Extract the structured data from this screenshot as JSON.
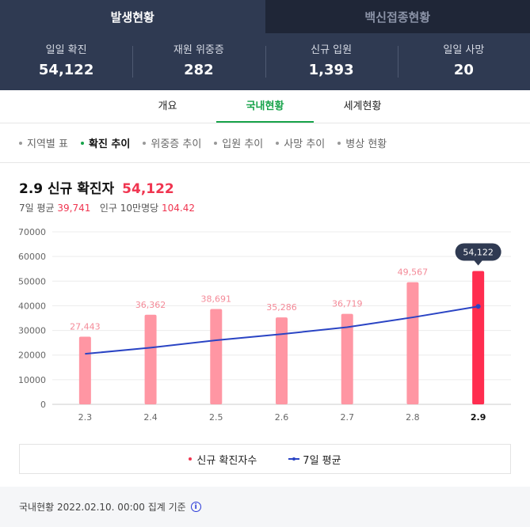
{
  "top_tabs": [
    {
      "label": "발생현황",
      "active": true
    },
    {
      "label": "백신접종현황",
      "active": false
    }
  ],
  "stats": [
    {
      "label": "일일 확진",
      "value": "54,122"
    },
    {
      "label": "재원 위중증",
      "value": "282"
    },
    {
      "label": "신규 입원",
      "value": "1,393"
    },
    {
      "label": "일일 사망",
      "value": "20"
    }
  ],
  "sub_tabs": [
    {
      "label": "개요",
      "active": false
    },
    {
      "label": "국내현황",
      "active": true
    },
    {
      "label": "세계현황",
      "active": false
    }
  ],
  "chips": [
    {
      "label": "지역별 표",
      "active": false
    },
    {
      "label": "확진 추이",
      "active": true
    },
    {
      "label": "위중증 추이",
      "active": false
    },
    {
      "label": "입원 추이",
      "active": false
    },
    {
      "label": "사망 추이",
      "active": false
    },
    {
      "label": "병상 현황",
      "active": false
    }
  ],
  "headline": {
    "title": "2.9 신규 확진자",
    "value": "54,122"
  },
  "subline": {
    "avg_label": "7일 평균",
    "avg_value": "39,741",
    "per_label": "인구 10만명당",
    "per_value": "104.42"
  },
  "chart_data": {
    "type": "bar",
    "categories": [
      "2.3",
      "2.4",
      "2.5",
      "2.6",
      "2.7",
      "2.8",
      "2.9"
    ],
    "series": [
      {
        "name": "신규 확진자수",
        "type": "bar",
        "values": [
          27443,
          36362,
          38691,
          35286,
          36719,
          49567,
          54122
        ]
      },
      {
        "name": "7일 평균",
        "type": "line",
        "values": [
          20500,
          23000,
          26000,
          28500,
          31300,
          35300,
          39741
        ]
      }
    ],
    "data_labels": [
      "27,443",
      "36,362",
      "38,691",
      "35,286",
      "36,719",
      "49,567",
      "54,122"
    ],
    "yticks": [
      0,
      10000,
      20000,
      30000,
      40000,
      50000,
      60000,
      70000
    ],
    "ylim": [
      0,
      70000
    ],
    "highlight_index": 6,
    "grid": true,
    "colors": {
      "bar": "#ff96a3",
      "bar_highlight": "#ff2d4f",
      "line": "#2a44c4",
      "tooltip_bg": "#2f3a52"
    }
  },
  "legend": {
    "bar_label": "신규 확진자수",
    "line_label": "7일 평균"
  },
  "footer": {
    "text": "국내현황 2022.02.10. 00:00 집계 기준",
    "icon": "info-icon"
  }
}
